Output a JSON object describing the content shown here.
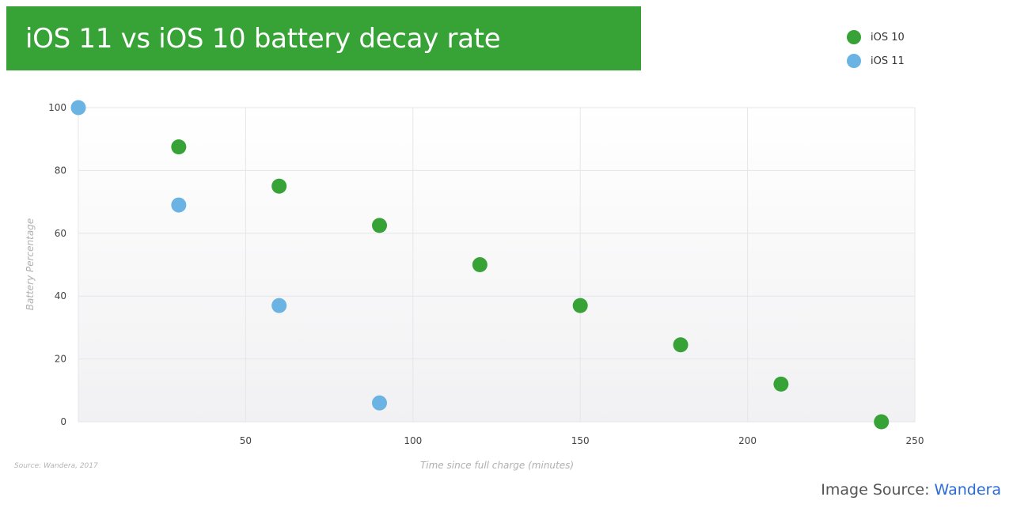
{
  "title": "iOS 11 vs iOS 10 battery decay rate",
  "legend": {
    "ios10_label": "iOS 10",
    "ios11_label": "iOS 11"
  },
  "colors": {
    "ios10": "#37a236",
    "ios11": "#6ab3e3",
    "banner": "#37a236",
    "link": "#2a6bd8"
  },
  "footer": {
    "source_note": "Source: Wandera, 2017",
    "image_source_prefix": "Image Source: ",
    "image_source_link": "Wandera"
  },
  "chart_data": {
    "type": "scatter",
    "title": "iOS 11 vs iOS 10 battery decay rate",
    "xlabel": "Time since full charge (minutes)",
    "ylabel": "Battery Percentage",
    "xlim": [
      0,
      250
    ],
    "ylim": [
      0,
      100
    ],
    "xticks": [
      50,
      100,
      150,
      200,
      250
    ],
    "yticks": [
      0,
      20,
      40,
      60,
      80,
      100
    ],
    "grid": true,
    "legend_position": "top-right",
    "series": [
      {
        "name": "iOS 10",
        "color": "#37a236",
        "points": [
          {
            "x": 30,
            "y": 87.5
          },
          {
            "x": 60,
            "y": 75
          },
          {
            "x": 90,
            "y": 62.5
          },
          {
            "x": 120,
            "y": 50
          },
          {
            "x": 150,
            "y": 37
          },
          {
            "x": 180,
            "y": 24.5
          },
          {
            "x": 210,
            "y": 12
          },
          {
            "x": 240,
            "y": 0
          }
        ]
      },
      {
        "name": "iOS 11",
        "color": "#6ab3e3",
        "points": [
          {
            "x": 0,
            "y": 100
          },
          {
            "x": 30,
            "y": 69
          },
          {
            "x": 60,
            "y": 37
          },
          {
            "x": 90,
            "y": 6
          }
        ]
      }
    ]
  }
}
